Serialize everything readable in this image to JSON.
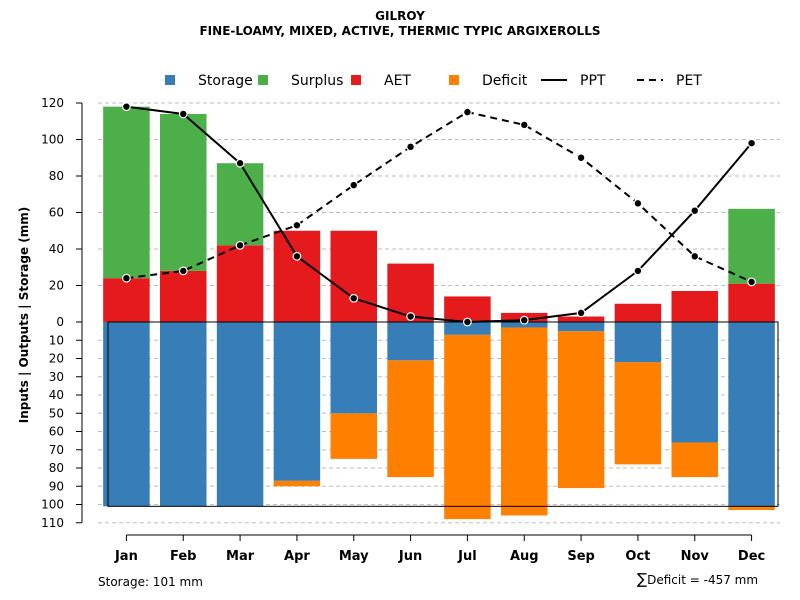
{
  "header": {
    "title": "GILROY",
    "subtitle": "FINE-LOAMY, MIXED, ACTIVE, THERMIC TYPIC ARGIXEROLLS"
  },
  "colors": {
    "storage": "#377EB8",
    "surplus": "#4DAF4A",
    "aet": "#E41A1C",
    "deficit": "#FF7F00",
    "ppt": "#000000",
    "pet": "#000000",
    "grid": "#BEBEBE"
  },
  "chart_data": {
    "type": "bar",
    "title": "GILROY",
    "subtitle": "FINE-LOAMY, MIXED, ACTIVE, THERMIC TYPIC ARGIXEROLLS",
    "ylabel": "Inputs | Outputs | Storage    (mm)",
    "xlabel": "",
    "categories": [
      "Jan",
      "Feb",
      "Mar",
      "Apr",
      "May",
      "Jun",
      "Jul",
      "Aug",
      "Sep",
      "Oct",
      "Nov",
      "Dec"
    ],
    "upper_ylim": [
      0,
      120
    ],
    "upper_ticks": [
      0,
      20,
      40,
      60,
      80,
      100,
      120
    ],
    "lower_ylim": [
      0,
      110
    ],
    "lower_ticks": [
      0,
      10,
      20,
      30,
      40,
      50,
      60,
      70,
      80,
      90,
      100,
      110
    ],
    "grid": true,
    "legend_position": "top",
    "legend": [
      {
        "key": "storage",
        "label": "Storage",
        "kind": "square"
      },
      {
        "key": "surplus",
        "label": "Surplus",
        "kind": "square"
      },
      {
        "key": "aet",
        "label": "AET",
        "kind": "square"
      },
      {
        "key": "deficit",
        "label": "Deficit",
        "kind": "square"
      },
      {
        "key": "ppt",
        "label": "PPT",
        "kind": "solid-line"
      },
      {
        "key": "pet",
        "label": "PET",
        "kind": "dashed-line"
      }
    ],
    "series": [
      {
        "name": "AET",
        "key": "aet",
        "values": [
          24,
          28,
          42,
          50,
          50,
          32,
          14,
          5,
          3,
          10,
          17,
          21
        ]
      },
      {
        "name": "Surplus",
        "key": "surplus",
        "values": [
          94,
          86,
          45,
          0,
          0,
          0,
          0,
          0,
          0,
          0,
          0,
          41
        ]
      },
      {
        "name": "Storage",
        "key": "storage",
        "values": [
          101,
          101,
          101,
          87,
          50,
          21,
          7,
          3,
          5,
          22,
          66,
          101
        ]
      },
      {
        "name": "Deficit",
        "key": "deficit",
        "values": [
          0,
          0,
          0,
          3,
          25,
          64,
          101,
          103,
          86,
          56,
          19,
          2
        ]
      },
      {
        "name": "PPT",
        "key": "ppt",
        "values": [
          118,
          114,
          87,
          36,
          13,
          3,
          0,
          1,
          5,
          28,
          61,
          98
        ]
      },
      {
        "name": "PET",
        "key": "pet",
        "values": [
          24,
          28,
          42,
          53,
          75,
          96,
          115,
          108,
          90,
          65,
          36,
          22
        ]
      }
    ],
    "storage_capacity": 101
  },
  "footer": {
    "storage_note": "Storage: 101 mm",
    "deficit_note": "Deficit = -457 mm"
  }
}
